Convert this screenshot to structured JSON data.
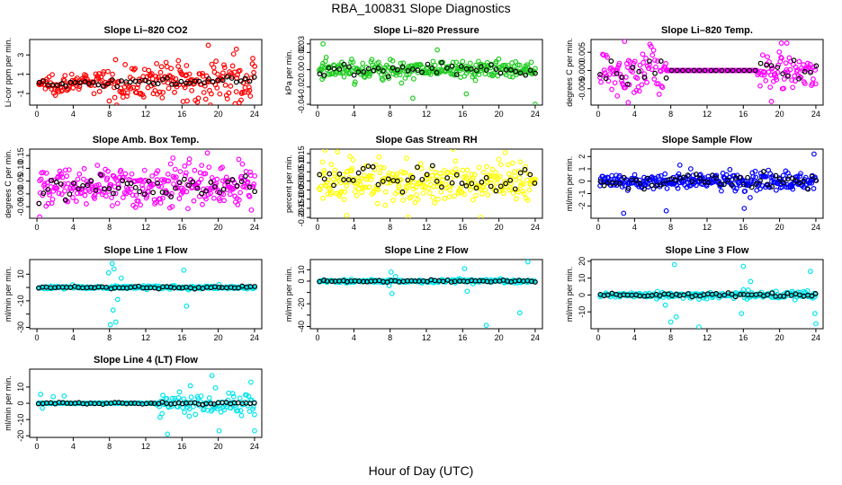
{
  "page": {
    "title": "RBA_100831  Slope Diagnostics",
    "xlabel": "Hour of Day (UTC)"
  },
  "colors": {
    "red": "#ff0000",
    "green": "#22cc22",
    "magenta": "#ff00ff",
    "yellow": "#ffff00",
    "blue": "#0000ff",
    "cyan": "#00e5ee",
    "black": "#000000"
  },
  "chart_data": [
    {
      "type": "scatter",
      "title": "Slope Li–820 CO2",
      "ylabel": "Li-cor ppm per min.",
      "color": "red",
      "xticks": [
        0,
        4,
        8,
        12,
        16,
        20,
        24
      ],
      "xlim": [
        -0.8,
        24.8
      ],
      "yticks": [
        -1,
        1,
        3
      ],
      "ylim": [
        -2.2,
        4.6
      ],
      "y_spread_left": 0.6,
      "y_spread_right": 1.8,
      "x_range": [
        0.2,
        24
      ],
      "base": 0,
      "drift": 0.4,
      "n": 270,
      "black_spread": 0.3,
      "n_black": 48,
      "outliers": [
        [
          18.9,
          4.0
        ],
        [
          22.0,
          3.6
        ],
        [
          15.6,
          2.4
        ],
        [
          13.2,
          2.1
        ],
        [
          16.5,
          1.9
        ]
      ]
    },
    {
      "type": "scatter",
      "title": "Slope Li–820 Pressure",
      "ylabel": "kPa per min.",
      "color": "green",
      "xticks": [
        0,
        4,
        8,
        12,
        16,
        20,
        24
      ],
      "xlim": [
        -0.8,
        24.8
      ],
      "yticks": [
        -0.04,
        -0.02,
        0.0,
        0.02
      ],
      "ytick_labels": [
        "-0.04",
        "-0.02",
        "0.00",
        "0.02"
      ],
      "yticks_extra": [
        [
          0.03,
          "0.03"
        ]
      ],
      "ylim": [
        -0.041,
        0.035
      ],
      "y_spread_left": 0.008,
      "y_spread_right": 0.008,
      "x_range": [
        0.2,
        24
      ],
      "base": 0,
      "drift": 0,
      "n": 290,
      "black_spread": 0.008,
      "n_black": 45,
      "outliers": [
        [
          0.6,
          0.03
        ],
        [
          10.5,
          -0.033
        ],
        [
          13.2,
          0.023
        ],
        [
          16.4,
          -0.028
        ],
        [
          24.0,
          -0.04
        ],
        [
          0.5,
          -0.011
        ]
      ]
    },
    {
      "type": "scatter",
      "title": "Slope Li–820 Temp.",
      "ylabel": "degrees C per min.",
      "color": "magenta",
      "xticks": [
        0,
        4,
        8,
        12,
        16,
        20,
        24
      ],
      "xlim": [
        -0.8,
        24.8
      ],
      "yticks": [
        -0.005,
        0.0,
        0.005
      ],
      "ytick_labels": [
        "-0.005",
        "0.000",
        "0.005"
      ],
      "ylim": [
        -0.0095,
        0.0085
      ],
      "y_spread_left": 0.0045,
      "y_spread_right": 0.0035,
      "x_range": [
        0.2,
        24
      ],
      "flat_range": [
        7.5,
        17.5
      ],
      "base": 0.0,
      "drift": 0,
      "n": 260,
      "black_spread": 0.0025,
      "n_black": 40,
      "outliers": [
        [
          2.9,
          0.008
        ],
        [
          3.3,
          -0.0088
        ],
        [
          2.1,
          -0.007
        ],
        [
          19.1,
          -0.0085
        ],
        [
          20.2,
          0.0075
        ],
        [
          20.8,
          0.0075
        ]
      ]
    },
    {
      "type": "scatter",
      "title": "Slope Amb. Box Temp.",
      "ylabel": "degrees C per min.",
      "color": "magenta",
      "xticks": [
        0,
        4,
        8,
        12,
        16,
        20,
        24
      ],
      "xlim": [
        -0.8,
        24.8
      ],
      "yticks": [
        -0.05,
        0.0,
        0.05,
        0.1,
        0.15
      ],
      "ytick_labels": [
        "-0.05",
        "0.00",
        "0.05",
        "0.10",
        "0.15"
      ],
      "ylim": [
        -0.095,
        0.175
      ],
      "y_spread_left": 0.05,
      "y_spread_right": 0.06,
      "x_range": [
        0.2,
        24
      ],
      "base": 0.02,
      "drift": 0.015,
      "n": 300,
      "black_spread": 0.04,
      "n_black": 50,
      "outliers": [
        [
          18.8,
          0.16
        ],
        [
          0.3,
          -0.09
        ],
        [
          15.0,
          0.14
        ]
      ]
    },
    {
      "type": "scatter",
      "title": "Slope Gas Stream RH",
      "ylabel": "percent per min.",
      "color": "yellow",
      "xticks": [
        0,
        4,
        8,
        12,
        16,
        20,
        24
      ],
      "xlim": [
        -0.8,
        24.8
      ],
      "yticks": [
        -0.2,
        -0.1,
        0.0,
        0.1
      ],
      "ytick_labels": [
        "-0.20",
        "-0.10",
        "0.00",
        "0.10"
      ],
      "yticks_extra": [
        [
          -0.15,
          "-0.15"
        ],
        [
          -0.05,
          "-0.05"
        ],
        [
          0.05,
          "0.05"
        ],
        [
          0.15,
          "0.15"
        ]
      ],
      "ylim": [
        -0.205,
        0.175
      ],
      "y_spread_left": 0.08,
      "y_spread_right": 0.08,
      "x_range": [
        0.2,
        24
      ],
      "base": 0.0,
      "drift": 0,
      "n": 290,
      "black_spread": 0.06,
      "n_black": 45,
      "outliers": [
        [
          0.8,
          0.17
        ],
        [
          3.2,
          -0.19
        ],
        [
          10.0,
          -0.2
        ],
        [
          18.0,
          -0.2
        ],
        [
          2.2,
          0.16
        ]
      ]
    },
    {
      "type": "scatter",
      "title": "Slope Sample Flow",
      "ylabel": "ml/min per min.",
      "color": "blue",
      "xticks": [
        0,
        4,
        8,
        12,
        16,
        20,
        24
      ],
      "xlim": [
        -0.8,
        24.8
      ],
      "yticks": [
        -2,
        -1,
        0,
        1,
        2
      ],
      "ylim": [
        -3.0,
        2.6
      ],
      "y_spread_left": 0.35,
      "y_spread_right": 0.6,
      "x_range": [
        0.2,
        24
      ],
      "base": 0.0,
      "drift": 0,
      "n": 300,
      "black_spread": 0.5,
      "n_black": 55,
      "outliers": [
        [
          7.5,
          -2.4
        ],
        [
          9.0,
          1.3
        ],
        [
          10.2,
          1.0
        ],
        [
          16.1,
          -2.2
        ],
        [
          23.8,
          2.2
        ],
        [
          2.8,
          -2.6
        ]
      ]
    },
    {
      "type": "scatter",
      "title": "Slope Line 1 Flow",
      "ylabel": "ml/min per min.",
      "color": "cyan",
      "xticks": [
        0,
        4,
        8,
        12,
        16,
        20,
        24
      ],
      "xlim": [
        -0.8,
        24.8
      ],
      "yticks": [
        -30,
        -20,
        -10,
        0,
        10
      ],
      "ytick_labels": [
        "-30",
        "",
        "-10",
        "",
        "10"
      ],
      "ylim": [
        -31,
        21
      ],
      "y_spread_left": 0.8,
      "y_spread_right": 0.8,
      "x_range": [
        0.2,
        24
      ],
      "base": 0,
      "drift": 0,
      "n": 230,
      "black_spread": 0.7,
      "n_black": 55,
      "outliers": [
        [
          8.3,
          18
        ],
        [
          8.1,
          -28
        ],
        [
          8.7,
          -26
        ],
        [
          8.5,
          14
        ],
        [
          7.9,
          11
        ],
        [
          16.2,
          13
        ],
        [
          16.5,
          -14
        ],
        [
          8.9,
          -9
        ],
        [
          9.3,
          7
        ],
        [
          8.4,
          -17
        ]
      ]
    },
    {
      "type": "scatter",
      "title": "Slope Line 2 Flow",
      "ylabel": "ml/min per min.",
      "color": "cyan",
      "xticks": [
        0,
        4,
        8,
        12,
        16,
        20,
        24
      ],
      "xlim": [
        -0.8,
        24.8
      ],
      "yticks": [
        -40,
        -30,
        -20,
        -10,
        0,
        10
      ],
      "ytick_labels": [
        "-40",
        "",
        "-20",
        "",
        "0",
        "10"
      ],
      "ylim": [
        -42,
        19
      ],
      "y_spread_left": 0.8,
      "y_spread_right": 1.2,
      "x_range": [
        0.2,
        24
      ],
      "base": 0,
      "drift": 0,
      "n": 230,
      "black_spread": 0.8,
      "n_black": 55,
      "outliers": [
        [
          8.2,
          -11
        ],
        [
          8.1,
          8
        ],
        [
          16.2,
          11
        ],
        [
          16.5,
          -9
        ],
        [
          18.6,
          -39
        ],
        [
          22.3,
          -28
        ],
        [
          23.2,
          17
        ],
        [
          7.9,
          -4
        ],
        [
          8.6,
          4
        ]
      ]
    },
    {
      "type": "scatter",
      "title": "Slope Line 3 Flow",
      "ylabel": "ml/min per min.",
      "color": "cyan",
      "xticks": [
        0,
        4,
        8,
        12,
        16,
        20,
        24
      ],
      "xlim": [
        -0.8,
        24.8
      ],
      "yticks": [
        -10,
        0,
        10,
        20
      ],
      "ytick_labels": [
        "-10",
        "0",
        "10",
        "20"
      ],
      "ylim": [
        -20,
        21
      ],
      "y_spread_left": 0.8,
      "y_spread_right": 1.8,
      "x_range": [
        0.2,
        24
      ],
      "base": 0,
      "drift": 0,
      "n": 230,
      "black_spread": 1.0,
      "n_black": 55,
      "outliers": [
        [
          8.0,
          -16
        ],
        [
          8.4,
          18
        ],
        [
          8.6,
          -13
        ],
        [
          11.1,
          -19
        ],
        [
          16.0,
          17
        ],
        [
          15.8,
          -11
        ],
        [
          23.4,
          14
        ],
        [
          23.9,
          -11
        ],
        [
          24.0,
          -17
        ],
        [
          7.4,
          -6
        ],
        [
          16.8,
          8
        ]
      ]
    },
    {
      "type": "scatter",
      "title": "Slope Line 4 (LT) Flow",
      "ylabel": "ml/min per min.",
      "color": "cyan",
      "xticks": [
        0,
        4,
        8,
        12,
        16,
        20,
        24
      ],
      "xlim": [
        -0.8,
        24.8
      ],
      "yticks": [
        -20,
        -10,
        0,
        10
      ],
      "ytick_labels": [
        "-20",
        "-10",
        "0",
        "10"
      ],
      "ylim": [
        -21,
        21
      ],
      "y_spread_left": 0.4,
      "y_spread_right": 4.5,
      "x_range": [
        0.2,
        24
      ],
      "split_x": 13.2,
      "base": 0,
      "drift": 0,
      "n": 220,
      "black_spread": 0.6,
      "n_black": 55,
      "outliers": [
        [
          0.4,
          5.5
        ],
        [
          0.6,
          -3.0
        ],
        [
          1.8,
          4.0
        ],
        [
          3.0,
          4.5
        ],
        [
          13.5,
          -2.0
        ],
        [
          19.3,
          17
        ],
        [
          14.4,
          -19
        ],
        [
          20.1,
          -17
        ],
        [
          23.6,
          13
        ],
        [
          24.0,
          -17
        ],
        [
          24.0,
          -7
        ],
        [
          19.7,
          9.5
        ],
        [
          16.8,
          -8
        ],
        [
          21.6,
          6
        ]
      ]
    }
  ]
}
